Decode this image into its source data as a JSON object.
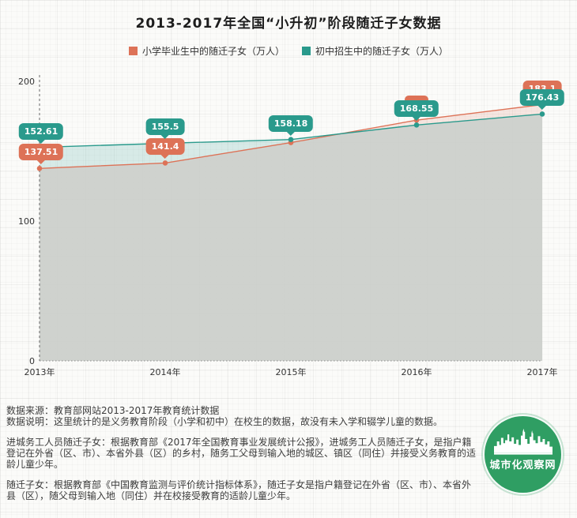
{
  "title": "2013-2017年全国“小升初”阶段随迁子女数据",
  "legend": [
    {
      "label": "小学毕业生中的随迁子女（万人）",
      "color": "#dd7257"
    },
    {
      "label": "初中招生中的随迁子女（万人）",
      "color": "#2a9a8c"
    }
  ],
  "chart_data": {
    "type": "area",
    "x": [
      "2013年",
      "2014年",
      "2015年",
      "2016年",
      "2017年"
    ],
    "ylim": [
      0,
      200
    ],
    "yticks": [
      0,
      100,
      200
    ],
    "legend_position": "top",
    "series": [
      {
        "name": "小学毕业生中的随迁子女（万人）",
        "color": "#dd7257",
        "band_fill": "rgba(221,111,85,0.15)",
        "values": [
          137.51,
          141.4,
          156,
          172,
          183.1
        ],
        "labels": [
          "137.51",
          "141.4",
          "",
          "",
          "183.1"
        ]
      },
      {
        "name": "初中招生中的随迁子女（万人）",
        "color": "#2a9a8c",
        "band_fill": "rgba(42,154,140,0.17)",
        "values": [
          152.61,
          155.5,
          158.18,
          168.55,
          176.43
        ],
        "labels": [
          "152.61",
          "155.5",
          "158.18",
          "168.55",
          "176.43"
        ]
      }
    ],
    "under_fill": "rgba(203,206,202,0.92)"
  },
  "footer": {
    "source": "数据来源：教育部网站2013-2017年教育统计数据",
    "note": "数据说明：这里统计的是义务教育阶段（小学和初中）在校生的数据，故没有未入学和辍学儿童的数据。",
    "para1": "进城务工人员随迁子女：根据教育部《2017年全国教育事业发展统计公报》，进城务工人员随迁子女，是指户籍登记在外省（区、市）、本省外县（区）的乡村，随务工父母到输入地的城区、镇区（同住）并接受义务教育的适龄儿童少年。",
    "para2": "随迁子女：根据教育部《中国教育监测与评价统计指标体系》，随迁子女是指户籍登记在外省（区、市）、本省外县（区），随父母到输入地（同住）并在校接受教育的适龄儿童少年。"
  },
  "logo": {
    "text": "城市化观察网",
    "color": "#2f9e63"
  }
}
